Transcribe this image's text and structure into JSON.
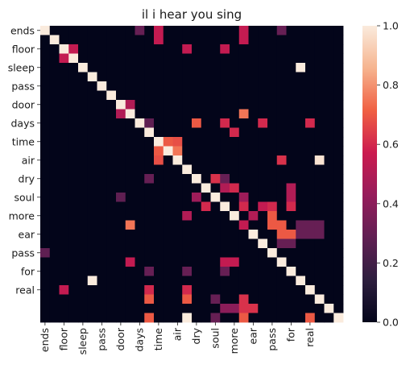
{
  "chart_data": {
    "type": "heatmap",
    "title": "il i hear you sing",
    "xlabel": "",
    "ylabel": "",
    "x_tick_labels": [
      "ends",
      "floor",
      "sleep",
      "pass",
      "door",
      "days",
      "time",
      "air",
      "dry",
      "soul",
      "more",
      "ear",
      "pass",
      "for",
      "real"
    ],
    "y_tick_labels": [
      "ends",
      "floor",
      "sleep",
      "pass",
      "door",
      "days",
      "time",
      "air",
      "dry",
      "soul",
      "more",
      "ear",
      "pass",
      "for",
      "real"
    ],
    "colorbar": {
      "ticks": [
        "0.0",
        "0.2",
        "0.4",
        "0.6",
        "0.8",
        "1.0"
      ],
      "tick_values": [
        0.0,
        0.2,
        0.4,
        0.6,
        0.8,
        1.0
      ],
      "range": [
        0,
        1
      ],
      "colormap": [
        "#03051a",
        "#2d1e3e",
        "#611f53",
        "#961c5b",
        "#cb1b4f",
        "#f06043",
        "#f6b48f",
        "#faebdd"
      ]
    },
    "matrix": [
      [
        1,
        0,
        0,
        0,
        0,
        0,
        0,
        0,
        0,
        0,
        0,
        0,
        0,
        0,
        0,
        0,
        0,
        0,
        0,
        0,
        0,
        0,
        0,
        0,
        0,
        0,
        0,
        0,
        0,
        0,
        0,
        0
      ],
      [
        0,
        1,
        0,
        0,
        0,
        0,
        0,
        0,
        0,
        0,
        0,
        0,
        0,
        0,
        0,
        0,
        0,
        0,
        0,
        0,
        0,
        0,
        0,
        0,
        0,
        0,
        0,
        0,
        0,
        0,
        0,
        0
      ],
      [
        0,
        0,
        1,
        0,
        0,
        0,
        0,
        0,
        0,
        0,
        0,
        0,
        0,
        0,
        0,
        0,
        0,
        0,
        0,
        0,
        0,
        0,
        0,
        0,
        0,
        0,
        0,
        0,
        0,
        0,
        0,
        0
      ],
      [
        0,
        0,
        0,
        1,
        0,
        0,
        0,
        0,
        0,
        0,
        0,
        0,
        0,
        0,
        0,
        0,
        0,
        0,
        0,
        0,
        0,
        0,
        0,
        0,
        0,
        0,
        0,
        0,
        0,
        0,
        0,
        0
      ],
      [
        0,
        0,
        0,
        0,
        1,
        0,
        0,
        0,
        0,
        0,
        0,
        0,
        0,
        0,
        0,
        0,
        0,
        0,
        0,
        0,
        0,
        0,
        0,
        0,
        0,
        0,
        0,
        0,
        0,
        0,
        0,
        0
      ],
      [
        0,
        0,
        0,
        0,
        0,
        1,
        0,
        0,
        0,
        0,
        0,
        0,
        0,
        0,
        0,
        0,
        0,
        0,
        0,
        0,
        0,
        0,
        0,
        0,
        0,
        0,
        0,
        0,
        0,
        0,
        0,
        0
      ],
      [
        0,
        0,
        0,
        0,
        0,
        0,
        1,
        0,
        0,
        0,
        0,
        0,
        0,
        0,
        0,
        0,
        0,
        0,
        0,
        0,
        0,
        0,
        0,
        0,
        0,
        0,
        0,
        0,
        0,
        0,
        0,
        0
      ],
      [
        0,
        0,
        0,
        0,
        0,
        0,
        0,
        1,
        0,
        0,
        0,
        0,
        0,
        0,
        0,
        0,
        0,
        0,
        0,
        0,
        0,
        0,
        0,
        0,
        0,
        0,
        0,
        0,
        0,
        0,
        0,
        0
      ],
      [
        0,
        0,
        0,
        0,
        0,
        0,
        0,
        0,
        1,
        0,
        0,
        0,
        0,
        0,
        0,
        0,
        0,
        0,
        0,
        0,
        0,
        0,
        0,
        0,
        0,
        0,
        0,
        0,
        0,
        0,
        0,
        0
      ],
      [
        0,
        0,
        0,
        0,
        0,
        0,
        0,
        0,
        0,
        1,
        0,
        0,
        0,
        0,
        0,
        0,
        0,
        0,
        0,
        0,
        0,
        0,
        0,
        0,
        0,
        0,
        0,
        0,
        0,
        0,
        0,
        0
      ],
      [
        0,
        0,
        0,
        0,
        0,
        0,
        0,
        0,
        0,
        0,
        1,
        0,
        0,
        0,
        0,
        0,
        0,
        0,
        0,
        0,
        0,
        0,
        0,
        0,
        0,
        0,
        0,
        0,
        0,
        0,
        0,
        0
      ],
      [
        0,
        0,
        0,
        0,
        0,
        0,
        0,
        0,
        0,
        0,
        0,
        1,
        0,
        0,
        0,
        0,
        0,
        0,
        0,
        0,
        0,
        0,
        0,
        0,
        0,
        0,
        0,
        0,
        0,
        0,
        0,
        0
      ],
      [
        0,
        0,
        0,
        0,
        0,
        0,
        0,
        0,
        0,
        0,
        0,
        0,
        1,
        0,
        0,
        0,
        0,
        0,
        0,
        0,
        0,
        0,
        0,
        0,
        0,
        0,
        0,
        0,
        0,
        0,
        0,
        0
      ],
      [
        0,
        0,
        0,
        0,
        0,
        0,
        0,
        0,
        0,
        0,
        0,
        0,
        0,
        1,
        0,
        0,
        0,
        0,
        0,
        0,
        0,
        0,
        0,
        0,
        0,
        0,
        0,
        0,
        0,
        0,
        0,
        0
      ],
      [
        0,
        0,
        0,
        0,
        0,
        0,
        0,
        0,
        0,
        0,
        0,
        0,
        0,
        0,
        1,
        0,
        0,
        0,
        0,
        0,
        0,
        0,
        0,
        0,
        0,
        0,
        0,
        0,
        0,
        0,
        0,
        0
      ],
      [
        0,
        0,
        0,
        0,
        0,
        0,
        0,
        0,
        0,
        0,
        0,
        0,
        0,
        0,
        0,
        1,
        0,
        0,
        0,
        0,
        0,
        0,
        0,
        0,
        0,
        0,
        0,
        0,
        0,
        0,
        0,
        0
      ],
      [
        0,
        0,
        0,
        0,
        0,
        0,
        0,
        0,
        0,
        0,
        0,
        0,
        0,
        0,
        0,
        0,
        1,
        0,
        0,
        0,
        0,
        0,
        0,
        0,
        0,
        0,
        0,
        0,
        0,
        0,
        0,
        0
      ],
      [
        0,
        0,
        0,
        0,
        0,
        0,
        0,
        0,
        0,
        0,
        0,
        0,
        0,
        0,
        0,
        0,
        0,
        1,
        0,
        0,
        0,
        0,
        0,
        0,
        0,
        0,
        0,
        0,
        0,
        0,
        0,
        0
      ],
      [
        0,
        0,
        0,
        0,
        0,
        0,
        0,
        0,
        0,
        0,
        0,
        0,
        0,
        0,
        0,
        0,
        0,
        0,
        1,
        0,
        0,
        0,
        0,
        0,
        0,
        0,
        0,
        0,
        0,
        0,
        0,
        0
      ],
      [
        0,
        0,
        0,
        0,
        0,
        0,
        0,
        0,
        0,
        0,
        0,
        0,
        0,
        0,
        0,
        0,
        0,
        0,
        0,
        1,
        0,
        0,
        0,
        0,
        0,
        0,
        0,
        0,
        0,
        0,
        0,
        0
      ],
      [
        0,
        0,
        0,
        0,
        0,
        0,
        0,
        0,
        0,
        0,
        0,
        0,
        0,
        0,
        0,
        0,
        0,
        0,
        0,
        0,
        1,
        0,
        0,
        0,
        0,
        0,
        0,
        0,
        0,
        0,
        0,
        0
      ],
      [
        0,
        0,
        0,
        0,
        0,
        0,
        0,
        0,
        0,
        0,
        0,
        0,
        0,
        0,
        0,
        0,
        0,
        0,
        0,
        0,
        0,
        1,
        0,
        0,
        0,
        0,
        0,
        0,
        0,
        0,
        0,
        0
      ],
      [
        0,
        0,
        0,
        0,
        0,
        0,
        0,
        0,
        0,
        0,
        0,
        0,
        0,
        0,
        0,
        0,
        0,
        0,
        0,
        0,
        0,
        0,
        1,
        0,
        0,
        0,
        0,
        0,
        0,
        0,
        0,
        0
      ],
      [
        0,
        0,
        0,
        0,
        0,
        0,
        0,
        0,
        0,
        0,
        0,
        0,
        0,
        0,
        0,
        0,
        0,
        0,
        0,
        0,
        0,
        0,
        0,
        1,
        0,
        0,
        0,
        0,
        0,
        0,
        0,
        0
      ],
      [
        0,
        0,
        0,
        0,
        0,
        0,
        0,
        0,
        0,
        0,
        0,
        0,
        0,
        0,
        0,
        0,
        0,
        0,
        0,
        0,
        0,
        0,
        0,
        0,
        1,
        0,
        0,
        0,
        0,
        0,
        0,
        0
      ],
      [
        0,
        0,
        0,
        0,
        0,
        0,
        0,
        0,
        0,
        0,
        0,
        0,
        0,
        0,
        0,
        0,
        0,
        0,
        0,
        0,
        0,
        0,
        0,
        0,
        0,
        1,
        0,
        0,
        0,
        0,
        0,
        0
      ],
      [
        0,
        0,
        0,
        0,
        0,
        0,
        0,
        0,
        0,
        0,
        0,
        0,
        0,
        0,
        0,
        0,
        0,
        0,
        0,
        0,
        0,
        0,
        0,
        0,
        0,
        0,
        1,
        0,
        0,
        0,
        0,
        0
      ],
      [
        0,
        0,
        0,
        0,
        0,
        0,
        0,
        0,
        0,
        0,
        0,
        0,
        0,
        0,
        0,
        0,
        0,
        0,
        0,
        0,
        0,
        0,
        0,
        0,
        0,
        0,
        0,
        1,
        0,
        0,
        0,
        0
      ],
      [
        0,
        0,
        0,
        0,
        0,
        0,
        0,
        0,
        0,
        0,
        0,
        0,
        0,
        0,
        0,
        0,
        0,
        0,
        0,
        0,
        0,
        0,
        0,
        0,
        0,
        0,
        0,
        0,
        1,
        0,
        0,
        0
      ],
      [
        0,
        0,
        0,
        0,
        0,
        0,
        0,
        0,
        0,
        0,
        0,
        0,
        0,
        0,
        0,
        0,
        0,
        0,
        0,
        0,
        0,
        0,
        0,
        0,
        0,
        0,
        0,
        0,
        0,
        1,
        0,
        0
      ],
      [
        0,
        0,
        0,
        0,
        0,
        0,
        0,
        0,
        0,
        0,
        0,
        0,
        0,
        0,
        0,
        0,
        0,
        0,
        0,
        0,
        0,
        0,
        0,
        0,
        0,
        0,
        0,
        0,
        0,
        0,
        1,
        0
      ],
      [
        0,
        0,
        0,
        0,
        0,
        0,
        0,
        0,
        0,
        0,
        0,
        0,
        0,
        0,
        0,
        0,
        0,
        0,
        0,
        0,
        0,
        0,
        0,
        0,
        0,
        0,
        0,
        0,
        0,
        0,
        0,
        1
      ]
    ],
    "extra_cells": [
      [
        0,
        10,
        0.3
      ],
      [
        0,
        25,
        0.3
      ],
      [
        0,
        12,
        0.55
      ],
      [
        0,
        21,
        0.55
      ],
      [
        1,
        12,
        0.55
      ],
      [
        1,
        21,
        0.55
      ],
      [
        2,
        3,
        0.55
      ],
      [
        3,
        2,
        0.55
      ],
      [
        2,
        15,
        0.55
      ],
      [
        2,
        19,
        0.55
      ],
      [
        4,
        27,
        1.0
      ],
      [
        11,
        20,
        0.6
      ],
      [
        8,
        9,
        0.5
      ],
      [
        9,
        8,
        0.5
      ],
      [
        9,
        21,
        0.75
      ],
      [
        21,
        9,
        0.75
      ],
      [
        10,
        16,
        0.7
      ],
      [
        10,
        19,
        0.6
      ],
      [
        10,
        23,
        0.6
      ],
      [
        10,
        28,
        0.6
      ],
      [
        10,
        11,
        0.28
      ],
      [
        12,
        13,
        0.7
      ],
      [
        12,
        14,
        0.68
      ],
      [
        13,
        12,
        0.7
      ],
      [
        13,
        14,
        0.75
      ],
      [
        14,
        12,
        0.68
      ],
      [
        14,
        14,
        1.0
      ],
      [
        14,
        25,
        0.62
      ],
      [
        14,
        29,
        0.98
      ],
      [
        14,
        33,
        1.0
      ],
      [
        16,
        18,
        0.62
      ],
      [
        16,
        11,
        0.3
      ],
      [
        16,
        19,
        0.3
      ],
      [
        17,
        20,
        0.6
      ],
      [
        17,
        19,
        0.5
      ],
      [
        17,
        26,
        0.5
      ],
      [
        18,
        8,
        0.28
      ],
      [
        18,
        16,
        0.45
      ],
      [
        18,
        21,
        0.45
      ],
      [
        18,
        26,
        0.5
      ],
      [
        19,
        17,
        0.6
      ],
      [
        19,
        21,
        0.6
      ],
      [
        19,
        23,
        0.55
      ],
      [
        19,
        24,
        0.6
      ],
      [
        19,
        26,
        0.6
      ],
      [
        20,
        15,
        0.5
      ],
      [
        20,
        22,
        0.5
      ],
      [
        20,
        24,
        0.7
      ],
      [
        21,
        21,
        0.55
      ],
      [
        21,
        24,
        0.7
      ],
      [
        21,
        25,
        0.7
      ],
      [
        21,
        27,
        0.3
      ],
      [
        21,
        28,
        0.3
      ],
      [
        21,
        29,
        0.3
      ],
      [
        22,
        25,
        0.7
      ],
      [
        22,
        26,
        0.7
      ],
      [
        22,
        27,
        0.3
      ],
      [
        22,
        28,
        0.3
      ],
      [
        22,
        29,
        0.3
      ],
      [
        23,
        25,
        0.3
      ],
      [
        23,
        26,
        0.3
      ],
      [
        24,
        0,
        0.28
      ],
      [
        25,
        9,
        0.55
      ],
      [
        25,
        19,
        0.55
      ],
      [
        25,
        20,
        0.55
      ],
      [
        26,
        11,
        0.3
      ],
      [
        26,
        15,
        0.3
      ],
      [
        26,
        19,
        0.3
      ],
      [
        27,
        5,
        1.0
      ],
      [
        28,
        2,
        0.55
      ],
      [
        28,
        11,
        0.6
      ],
      [
        28,
        15,
        0.6
      ],
      [
        29,
        11,
        0.7
      ],
      [
        29,
        15,
        0.7
      ],
      [
        29,
        18,
        0.3
      ],
      [
        29,
        21,
        0.62
      ],
      [
        30,
        19,
        0.4
      ],
      [
        30,
        20,
        0.4
      ],
      [
        30,
        21,
        0.62
      ],
      [
        30,
        22,
        0.62
      ],
      [
        31,
        11,
        0.7
      ],
      [
        31,
        15,
        1.0
      ],
      [
        31,
        18,
        0.3
      ],
      [
        31,
        21,
        0.7
      ],
      [
        31,
        28,
        0.7
      ]
    ]
  }
}
